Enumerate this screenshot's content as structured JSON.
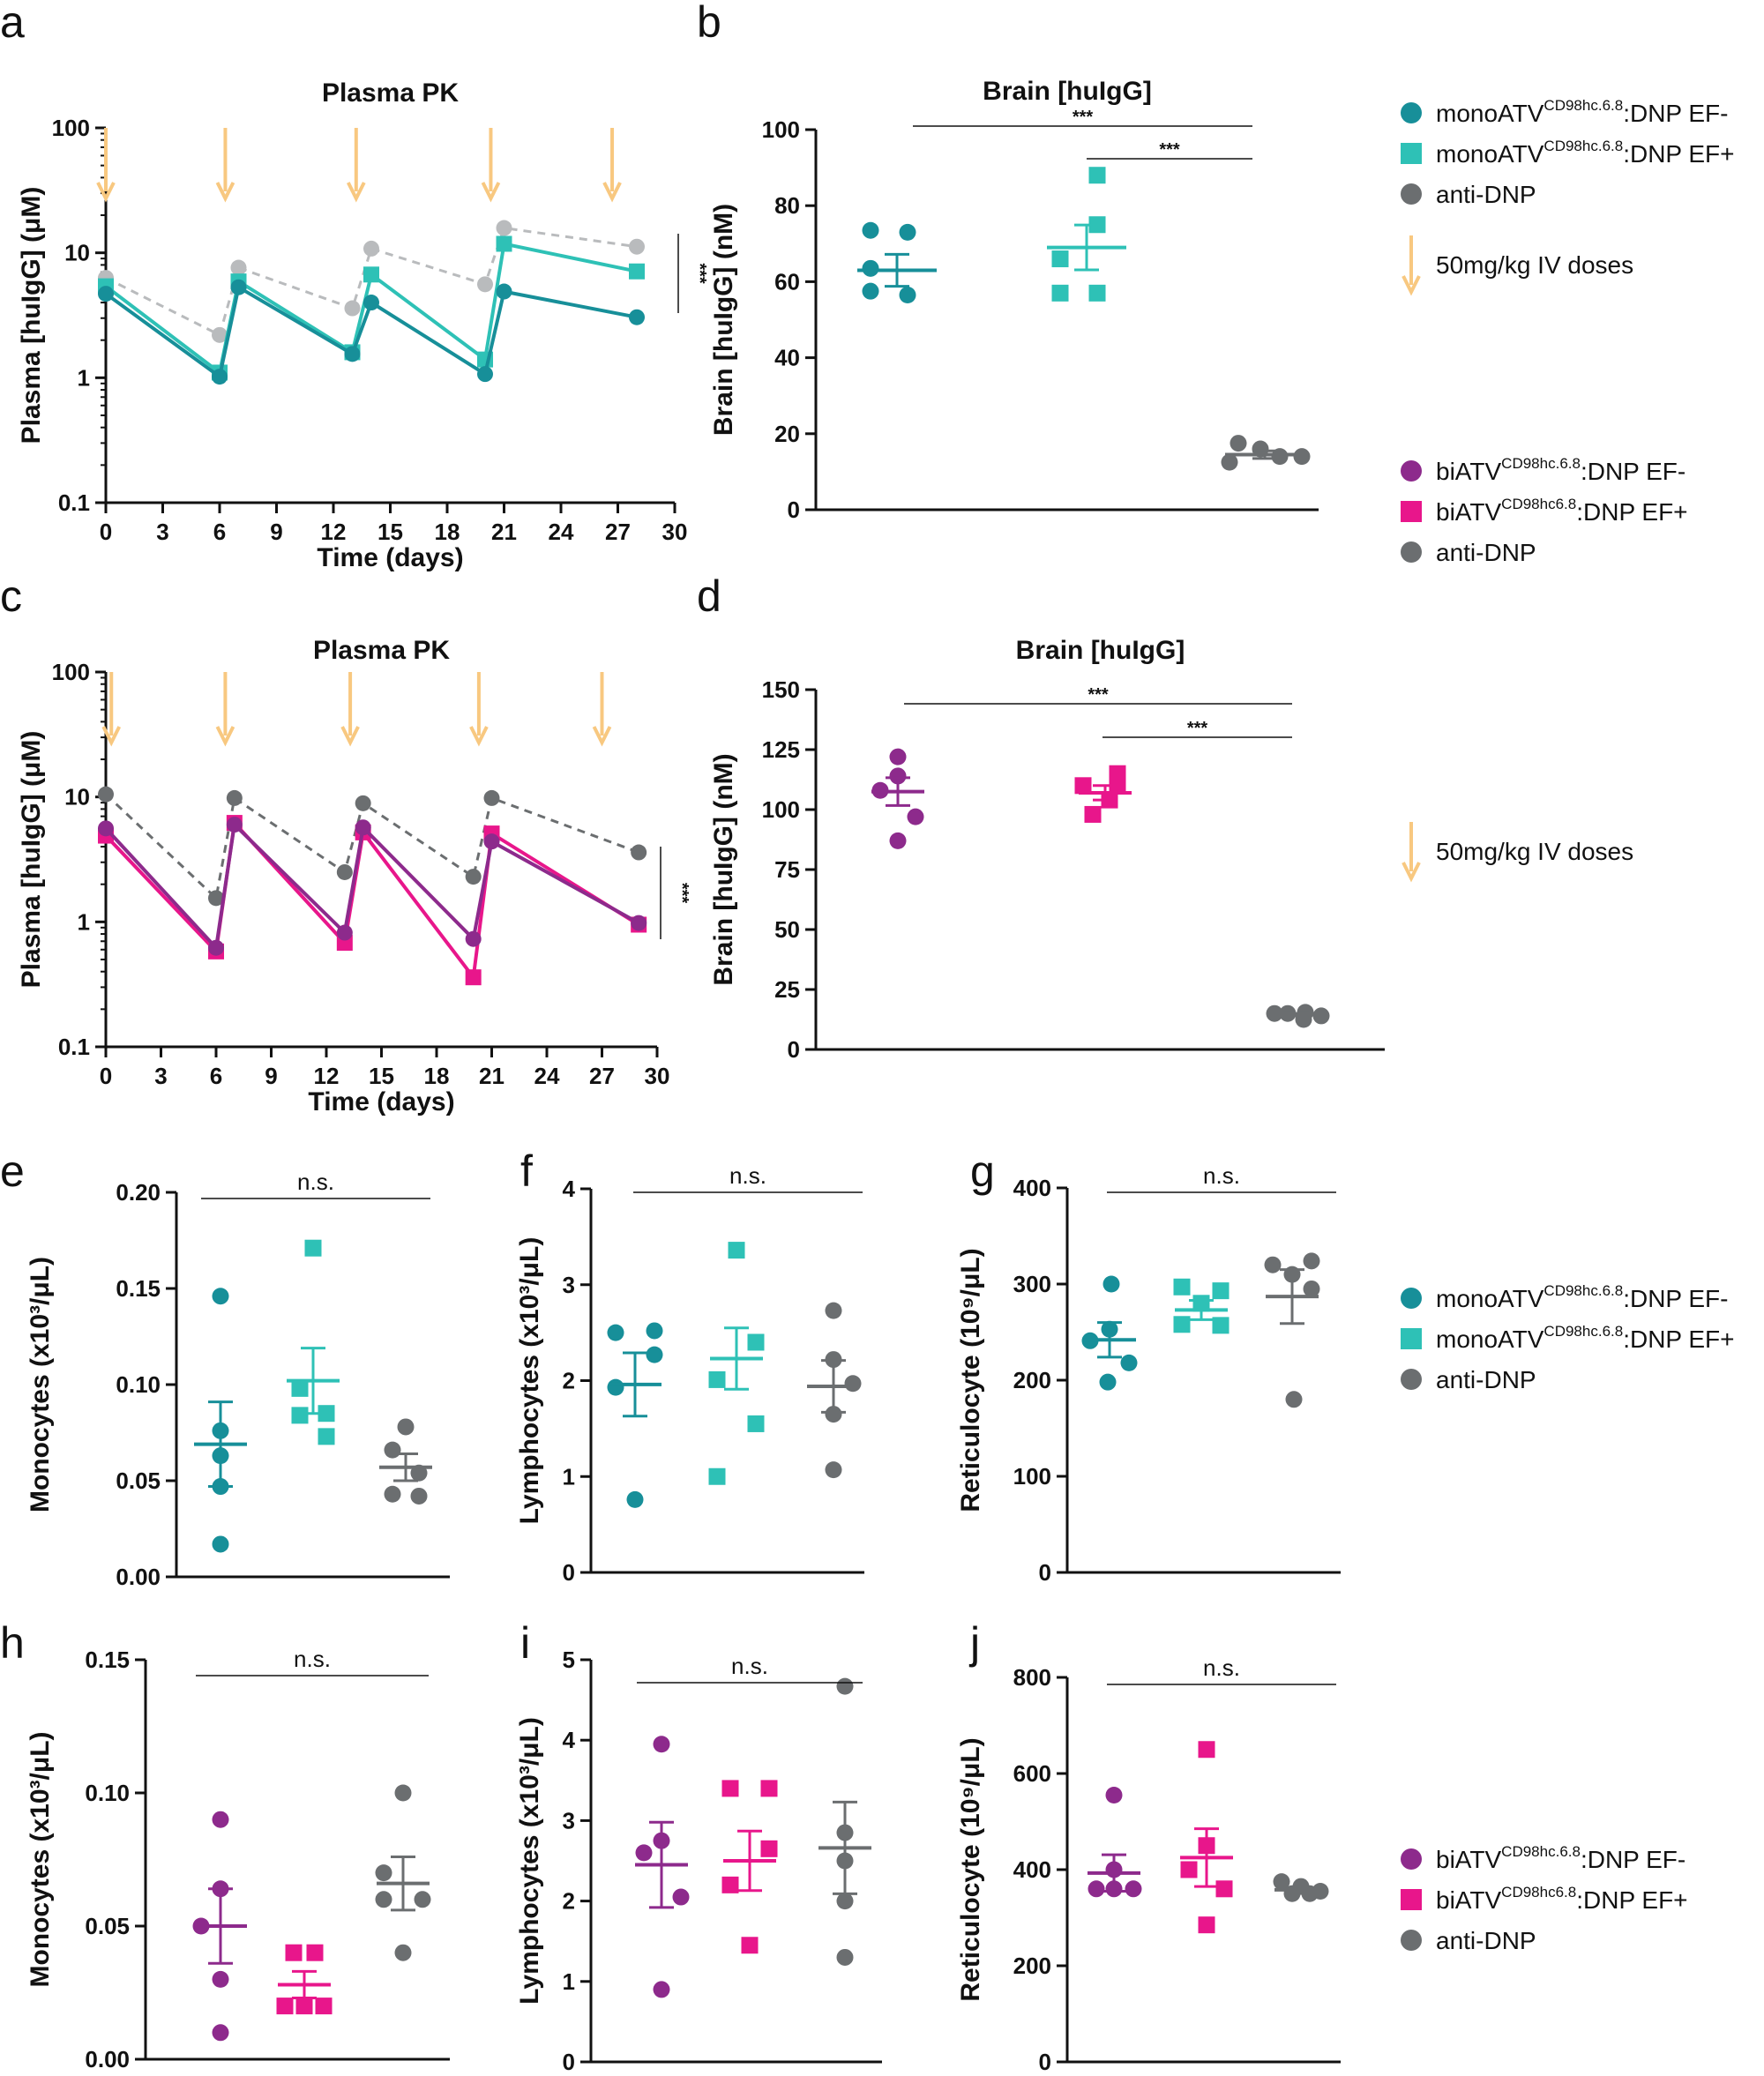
{
  "colors": {
    "teal_dark": "#178f99",
    "teal_light": "#2ec1b6",
    "grey": "#6b6e70",
    "grey_light": "#b9bbbd",
    "purple": "#8d2a8c",
    "magenta": "#e8168b",
    "arrow": "#f8c880"
  },
  "legends": {
    "top": {
      "items": [
        {
          "pre": "monoATV",
          "sup": "CD98hc.6.8",
          "post": ":DNP EF-",
          "color": "#178f99",
          "marker": "circle"
        },
        {
          "pre": "monoATV",
          "sup": "CD98hc.6.8",
          "post": ":DNP EF+",
          "color": "#2ec1b6",
          "marker": "square"
        },
        {
          "pre": "anti-DNP",
          "sup": "",
          "post": "",
          "color": "#6b6e70",
          "marker": "circle"
        }
      ],
      "dose_label": "50mg/kg IV doses"
    },
    "mid": {
      "items": [
        {
          "pre": "biATV",
          "sup": "CD98hc.6.8",
          "post": ":DNP EF-",
          "color": "#8d2a8c",
          "marker": "circle"
        },
        {
          "pre": "biATV",
          "sup": "CD98hc6.8",
          "post": ":DNP EF+",
          "color": "#e8168b",
          "marker": "square"
        },
        {
          "pre": "anti-DNP",
          "sup": "",
          "post": "",
          "color": "#6b6e70",
          "marker": "circle"
        }
      ],
      "dose_label": "50mg/kg IV doses"
    },
    "e_g": {
      "items": [
        {
          "pre": "monoATV",
          "sup": "CD98hc.6.8",
          "post": ":DNP EF-",
          "color": "#178f99",
          "marker": "circle"
        },
        {
          "pre": "monoATV",
          "sup": "CD98hc.6.8",
          "post": ":DNP EF+",
          "color": "#2ec1b6",
          "marker": "square"
        },
        {
          "pre": "anti-DNP",
          "sup": "",
          "post": "",
          "color": "#6b6e70",
          "marker": "circle"
        }
      ]
    },
    "h_j": {
      "items": [
        {
          "pre": "biATV",
          "sup": "CD98hc.6.8",
          "post": ":DNP EF-",
          "color": "#8d2a8c",
          "marker": "circle"
        },
        {
          "pre": "biATV",
          "sup": "CD98hc6.8",
          "post": ":DNP EF+",
          "color": "#e8168b",
          "marker": "square"
        },
        {
          "pre": "anti-DNP",
          "sup": "",
          "post": "",
          "color": "#6b6e70",
          "marker": "circle"
        }
      ]
    }
  },
  "chart_data": [
    {
      "panel": "a",
      "type": "line",
      "title": "Plasma PK",
      "xlabel": "Time (days)",
      "ylabel": "Plasma [huIgG] (μM)",
      "yscale": "log",
      "ylim": [
        0.1,
        100
      ],
      "xlim": [
        0,
        30
      ],
      "xticks": [
        0,
        3,
        6,
        9,
        12,
        15,
        18,
        21,
        24,
        27,
        30
      ],
      "yticks": [
        {
          "v": 100,
          "label": "100"
        },
        {
          "v": 10,
          "label": "10"
        },
        {
          "v": 1,
          "label": "1"
        },
        {
          "v": 0.1,
          "label": "0.1"
        }
      ],
      "dose_days": [
        0,
        6.3,
        13.2,
        20.3,
        26.7
      ],
      "significance": "***",
      "series": [
        {
          "name": "anti-DNP",
          "color": "#b9bbbd",
          "dashed": true,
          "marker": "circle",
          "x": [
            0,
            6,
            7,
            13,
            14,
            20,
            21,
            28
          ],
          "y": [
            6.3,
            2.2,
            7.6,
            3.6,
            10.8,
            5.6,
            15.8,
            11.2
          ]
        },
        {
          "name": "monoATV EF+",
          "color": "#2ec1b6",
          "dashed": false,
          "marker": "square",
          "x": [
            0,
            6,
            7,
            13,
            14,
            20,
            21,
            28
          ],
          "y": [
            5.4,
            1.1,
            5.9,
            1.6,
            6.7,
            1.4,
            11.8,
            7.1
          ]
        },
        {
          "name": "monoATV EF-",
          "color": "#178f99",
          "dashed": false,
          "marker": "circle",
          "x": [
            0,
            6,
            7,
            13,
            14,
            20,
            21,
            28
          ],
          "y": [
            4.7,
            1.02,
            5.3,
            1.55,
            4.0,
            1.07,
            4.9,
            3.05
          ]
        }
      ]
    },
    {
      "panel": "b",
      "type": "scatter",
      "title": "Brain [huIgG]",
      "ylabel": "Brain [huIgG] (nM)",
      "ylim": [
        0,
        100
      ],
      "yticks": [
        0,
        20,
        40,
        60,
        80,
        100
      ],
      "groups": [
        {
          "name": "monoATV EF-",
          "color": "#178f99",
          "marker": "circle",
          "values": [
            73,
            73.5,
            63.5,
            56.5,
            57.5
          ],
          "mean": 63,
          "sem": 4.2
        },
        {
          "name": "monoATV EF+",
          "color": "#2ec1b6",
          "marker": "square",
          "values": [
            88,
            75,
            66,
            57,
            57
          ],
          "mean": 69,
          "sem": 5.9
        },
        {
          "name": "anti-DNP",
          "color": "#6b6e70",
          "marker": "circle",
          "values": [
            17.5,
            16,
            12.5,
            14,
            14
          ],
          "mean": 14.5,
          "sem": 1.0
        }
      ],
      "brackets": [
        {
          "from": 0,
          "to": 2,
          "label": "***"
        },
        {
          "from": 1,
          "to": 2,
          "label": "***"
        }
      ]
    },
    {
      "panel": "c",
      "type": "line",
      "title": "Plasma PK",
      "xlabel": "Time (days)",
      "ylabel": "Plasma [huIgG] (μM)",
      "yscale": "log",
      "ylim": [
        0.1,
        100
      ],
      "xlim": [
        0,
        30
      ],
      "xticks": [
        0,
        3,
        6,
        9,
        12,
        15,
        18,
        21,
        24,
        27,
        30
      ],
      "yticks": [
        {
          "v": 100,
          "label": "100"
        },
        {
          "v": 10,
          "label": "10"
        },
        {
          "v": 1,
          "label": "1"
        },
        {
          "v": 0.1,
          "label": "0.1"
        }
      ],
      "dose_days": [
        0.3,
        6.5,
        13.3,
        20.3,
        27
      ],
      "significance": "***",
      "series": [
        {
          "name": "anti-DNP",
          "color": "#6b6e70",
          "dashed": true,
          "marker": "circle",
          "x": [
            0,
            6,
            7,
            13,
            14,
            20,
            21,
            29
          ],
          "y": [
            10.5,
            1.55,
            9.8,
            2.5,
            8.9,
            2.3,
            9.8,
            3.6
          ]
        },
        {
          "name": "biATV EF+",
          "color": "#e8168b",
          "dashed": false,
          "marker": "square",
          "x": [
            0,
            6,
            7,
            13,
            14,
            20,
            21,
            29
          ],
          "y": [
            4.9,
            0.58,
            6.2,
            0.68,
            5.2,
            0.36,
            5.1,
            0.95
          ]
        },
        {
          "name": "biATV EF-",
          "color": "#8d2a8c",
          "dashed": false,
          "marker": "circle",
          "x": [
            0,
            6,
            7,
            13,
            14,
            20,
            21,
            29
          ],
          "y": [
            5.6,
            0.62,
            6.0,
            0.82,
            5.7,
            0.73,
            4.4,
            0.98
          ]
        }
      ]
    },
    {
      "panel": "d",
      "type": "scatter",
      "title": "Brain [huIgG]",
      "ylabel": "Brain [huIgG] (nM)",
      "ylim": [
        0,
        150
      ],
      "yticks": [
        0,
        25,
        50,
        75,
        100,
        125,
        150
      ],
      "groups": [
        {
          "name": "biATV EF-",
          "color": "#8d2a8c",
          "marker": "circle",
          "values": [
            122,
            114,
            108,
            97,
            87
          ],
          "mean": 107.5,
          "sem": 5.8
        },
        {
          "name": "biATV EF+",
          "color": "#e8168b",
          "marker": "square",
          "values": [
            115,
            111,
            110,
            104,
            98
          ],
          "mean": 107,
          "sem": 3.0
        },
        {
          "name": "anti-DNP",
          "color": "#6b6e70",
          "marker": "circle",
          "values": [
            15,
            15.5,
            15,
            14,
            12.5
          ],
          "mean": 14.5,
          "sem": 0.5
        }
      ],
      "brackets": [
        {
          "from": 0,
          "to": 2,
          "label": "***"
        },
        {
          "from": 1,
          "to": 2,
          "label": "***"
        }
      ]
    },
    {
      "panel": "e",
      "type": "scatter",
      "ylabel": "Monocytes (x10³/μL)",
      "ylim": [
        0,
        0.2
      ],
      "yticks": [
        {
          "v": 0,
          "label": "0.00"
        },
        {
          "v": 0.05,
          "label": "0.05"
        },
        {
          "v": 0.1,
          "label": "0.10"
        },
        {
          "v": 0.15,
          "label": "0.15"
        },
        {
          "v": 0.2,
          "label": "0.20"
        }
      ],
      "groups": [
        {
          "name": "monoATV EF-",
          "color": "#178f99",
          "marker": "circle",
          "values": [
            0.146,
            0.076,
            0.063,
            0.047,
            0.017
          ],
          "mean": 0.069,
          "sem": 0.022
        },
        {
          "name": "monoATV EF+",
          "color": "#2ec1b6",
          "marker": "square",
          "values": [
            0.171,
            0.098,
            0.085,
            0.084,
            0.073
          ],
          "mean": 0.102,
          "sem": 0.017
        },
        {
          "name": "anti-DNP",
          "color": "#6b6e70",
          "marker": "circle",
          "values": [
            0.078,
            0.066,
            0.054,
            0.043,
            0.042
          ],
          "mean": 0.057,
          "sem": 0.007
        }
      ],
      "brackets": [
        {
          "from": 0,
          "to": 2,
          "label": "n.s."
        }
      ]
    },
    {
      "panel": "f",
      "type": "scatter",
      "ylabel": "Lymphocytes (x10³/μL)",
      "ylim": [
        0,
        4
      ],
      "yticks": [
        {
          "v": 0,
          "label": "0"
        },
        {
          "v": 1,
          "label": "1"
        },
        {
          "v": 2,
          "label": "2"
        },
        {
          "v": 3,
          "label": "3"
        },
        {
          "v": 4,
          "label": "4"
        }
      ],
      "groups": [
        {
          "name": "monoATV EF-",
          "color": "#178f99",
          "marker": "circle",
          "values": [
            2.52,
            2.5,
            2.27,
            1.93,
            0.76
          ],
          "mean": 1.96,
          "sem": 0.33
        },
        {
          "name": "monoATV EF+",
          "color": "#2ec1b6",
          "marker": "square",
          "values": [
            3.36,
            2.4,
            2.01,
            1.55,
            1.0
          ],
          "mean": 2.23,
          "sem": 0.32
        },
        {
          "name": "anti-DNP",
          "color": "#6b6e70",
          "marker": "circle",
          "values": [
            2.73,
            2.22,
            1.97,
            1.65,
            1.07
          ],
          "mean": 1.94,
          "sem": 0.27
        }
      ],
      "brackets": [
        {
          "from": 0,
          "to": 2,
          "label": "n.s."
        }
      ]
    },
    {
      "panel": "g",
      "type": "scatter",
      "ylabel": "Reticulocyte (10⁹/μL)",
      "ylim": [
        0,
        400
      ],
      "yticks": [
        {
          "v": 0,
          "label": "0"
        },
        {
          "v": 100,
          "label": "100"
        },
        {
          "v": 200,
          "label": "200"
        },
        {
          "v": 300,
          "label": "300"
        },
        {
          "v": 400,
          "label": "400"
        }
      ],
      "groups": [
        {
          "name": "monoATV EF-",
          "color": "#178f99",
          "marker": "circle",
          "values": [
            300,
            253,
            241,
            218,
            198
          ],
          "mean": 242,
          "sem": 18
        },
        {
          "name": "monoATV EF+",
          "color": "#2ec1b6",
          "marker": "square",
          "values": [
            297,
            293,
            280,
            258,
            257
          ],
          "mean": 273,
          "sem": 10
        },
        {
          "name": "anti-DNP",
          "color": "#6b6e70",
          "marker": "circle",
          "values": [
            324,
            320,
            310,
            295,
            180
          ],
          "mean": 287,
          "sem": 28
        }
      ],
      "brackets": [
        {
          "from": 0,
          "to": 2,
          "label": "n.s."
        }
      ]
    },
    {
      "panel": "h",
      "type": "scatter",
      "ylabel": "Monocytes (x10³/μL)",
      "ylim": [
        0,
        0.15
      ],
      "yticks": [
        {
          "v": 0,
          "label": "0.00"
        },
        {
          "v": 0.05,
          "label": "0.05"
        },
        {
          "v": 0.1,
          "label": "0.10"
        },
        {
          "v": 0.15,
          "label": "0.15"
        }
      ],
      "groups": [
        {
          "name": "biATV EF-",
          "color": "#8d2a8c",
          "marker": "circle",
          "values": [
            0.09,
            0.064,
            0.05,
            0.03,
            0.01
          ],
          "mean": 0.05,
          "sem": 0.014
        },
        {
          "name": "biATV EF+",
          "color": "#e8168b",
          "marker": "square",
          "values": [
            0.04,
            0.04,
            0.02,
            0.02,
            0.02
          ],
          "mean": 0.028,
          "sem": 0.005
        },
        {
          "name": "anti-DNP",
          "color": "#6b6e70",
          "marker": "circle",
          "values": [
            0.1,
            0.07,
            0.06,
            0.06,
            0.04
          ],
          "mean": 0.066,
          "sem": 0.01
        }
      ],
      "brackets": [
        {
          "from": 0,
          "to": 2,
          "label": "n.s."
        }
      ]
    },
    {
      "panel": "i",
      "type": "scatter",
      "ylabel": "Lymphocytes (x10³/μL)",
      "ylim": [
        0,
        5
      ],
      "yticks": [
        {
          "v": 0,
          "label": "0"
        },
        {
          "v": 1,
          "label": "1"
        },
        {
          "v": 2,
          "label": "2"
        },
        {
          "v": 3,
          "label": "3"
        },
        {
          "v": 4,
          "label": "4"
        },
        {
          "v": 5,
          "label": "5"
        }
      ],
      "groups": [
        {
          "name": "biATV EF-",
          "color": "#8d2a8c",
          "marker": "circle",
          "values": [
            3.95,
            2.75,
            2.6,
            2.05,
            0.9
          ],
          "mean": 2.45,
          "sem": 0.53
        },
        {
          "name": "biATV EF+",
          "color": "#e8168b",
          "marker": "square",
          "values": [
            3.4,
            3.4,
            2.65,
            2.2,
            1.45
          ],
          "mean": 2.5,
          "sem": 0.37
        },
        {
          "name": "anti-DNP",
          "color": "#6b6e70",
          "marker": "circle",
          "values": [
            4.67,
            2.85,
            2.5,
            2.0,
            1.3
          ],
          "mean": 2.66,
          "sem": 0.57
        }
      ],
      "brackets": [
        {
          "from": 0,
          "to": 2,
          "label": "n.s."
        }
      ]
    },
    {
      "panel": "j",
      "type": "scatter",
      "ylabel": "Reticulocyte (10⁹/μL)",
      "ylim": [
        0,
        800
      ],
      "yticks": [
        {
          "v": 0,
          "label": "0"
        },
        {
          "v": 200,
          "label": "200"
        },
        {
          "v": 400,
          "label": "400"
        },
        {
          "v": 600,
          "label": "600"
        },
        {
          "v": 800,
          "label": "800"
        }
      ],
      "groups": [
        {
          "name": "biATV EF-",
          "color": "#8d2a8c",
          "marker": "circle",
          "values": [
            555,
            400,
            360,
            360,
            360
          ],
          "mean": 393,
          "sem": 38
        },
        {
          "name": "biATV EF+",
          "color": "#e8168b",
          "marker": "square",
          "values": [
            650,
            450,
            400,
            360,
            285
          ],
          "mean": 425,
          "sem": 60
        },
        {
          "name": "anti-DNP",
          "color": "#6b6e70",
          "marker": "circle",
          "values": [
            375,
            365,
            355,
            350,
            350
          ],
          "mean": 358,
          "sem": 5
        }
      ],
      "brackets": [
        {
          "from": 0,
          "to": 2,
          "label": "n.s."
        }
      ]
    }
  ]
}
